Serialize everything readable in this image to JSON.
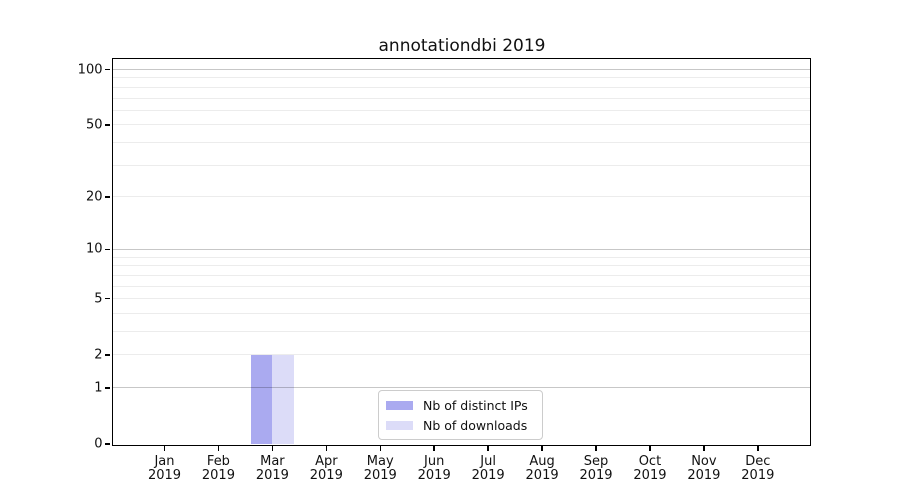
{
  "chart_data": {
    "type": "bar",
    "title": "annotationdbi 2019",
    "xlabel": "",
    "ylabel": "",
    "yscale": "log1p",
    "ylim": [
      0,
      114
    ],
    "y_ticks": [
      0,
      1,
      2,
      5,
      10,
      20,
      50,
      100
    ],
    "grid_major_values": [
      1,
      10,
      100
    ],
    "grid_minor_values": [
      2,
      3,
      4,
      5,
      6,
      7,
      8,
      9,
      20,
      30,
      40,
      50,
      60,
      70,
      80,
      90
    ],
    "x_tick_labels": [
      {
        "top": "Jan",
        "bottom": "2019"
      },
      {
        "top": "Feb",
        "bottom": "2019"
      },
      {
        "top": "Mar",
        "bottom": "2019"
      },
      {
        "top": "Apr",
        "bottom": "2019"
      },
      {
        "top": "May",
        "bottom": "2019"
      },
      {
        "top": "Jun",
        "bottom": "2019"
      },
      {
        "top": "Jul",
        "bottom": "2019"
      },
      {
        "top": "Aug",
        "bottom": "2019"
      },
      {
        "top": "Sep",
        "bottom": "2019"
      },
      {
        "top": "Oct",
        "bottom": "2019"
      },
      {
        "top": "Nov",
        "bottom": "2019"
      },
      {
        "top": "Dec",
        "bottom": "2019"
      }
    ],
    "series": [
      {
        "name": "Nb of distinct IPs",
        "color": "#aaaaf0",
        "values": [
          0,
          0,
          2,
          0,
          0,
          0,
          0,
          0,
          0,
          0,
          0,
          0
        ]
      },
      {
        "name": "Nb of downloads",
        "color": "#dcdcf8",
        "values": [
          0,
          0,
          2,
          0,
          0,
          0,
          0,
          0,
          0,
          0,
          0,
          0
        ]
      }
    ],
    "legend_position": "lower center",
    "grid": "on"
  }
}
